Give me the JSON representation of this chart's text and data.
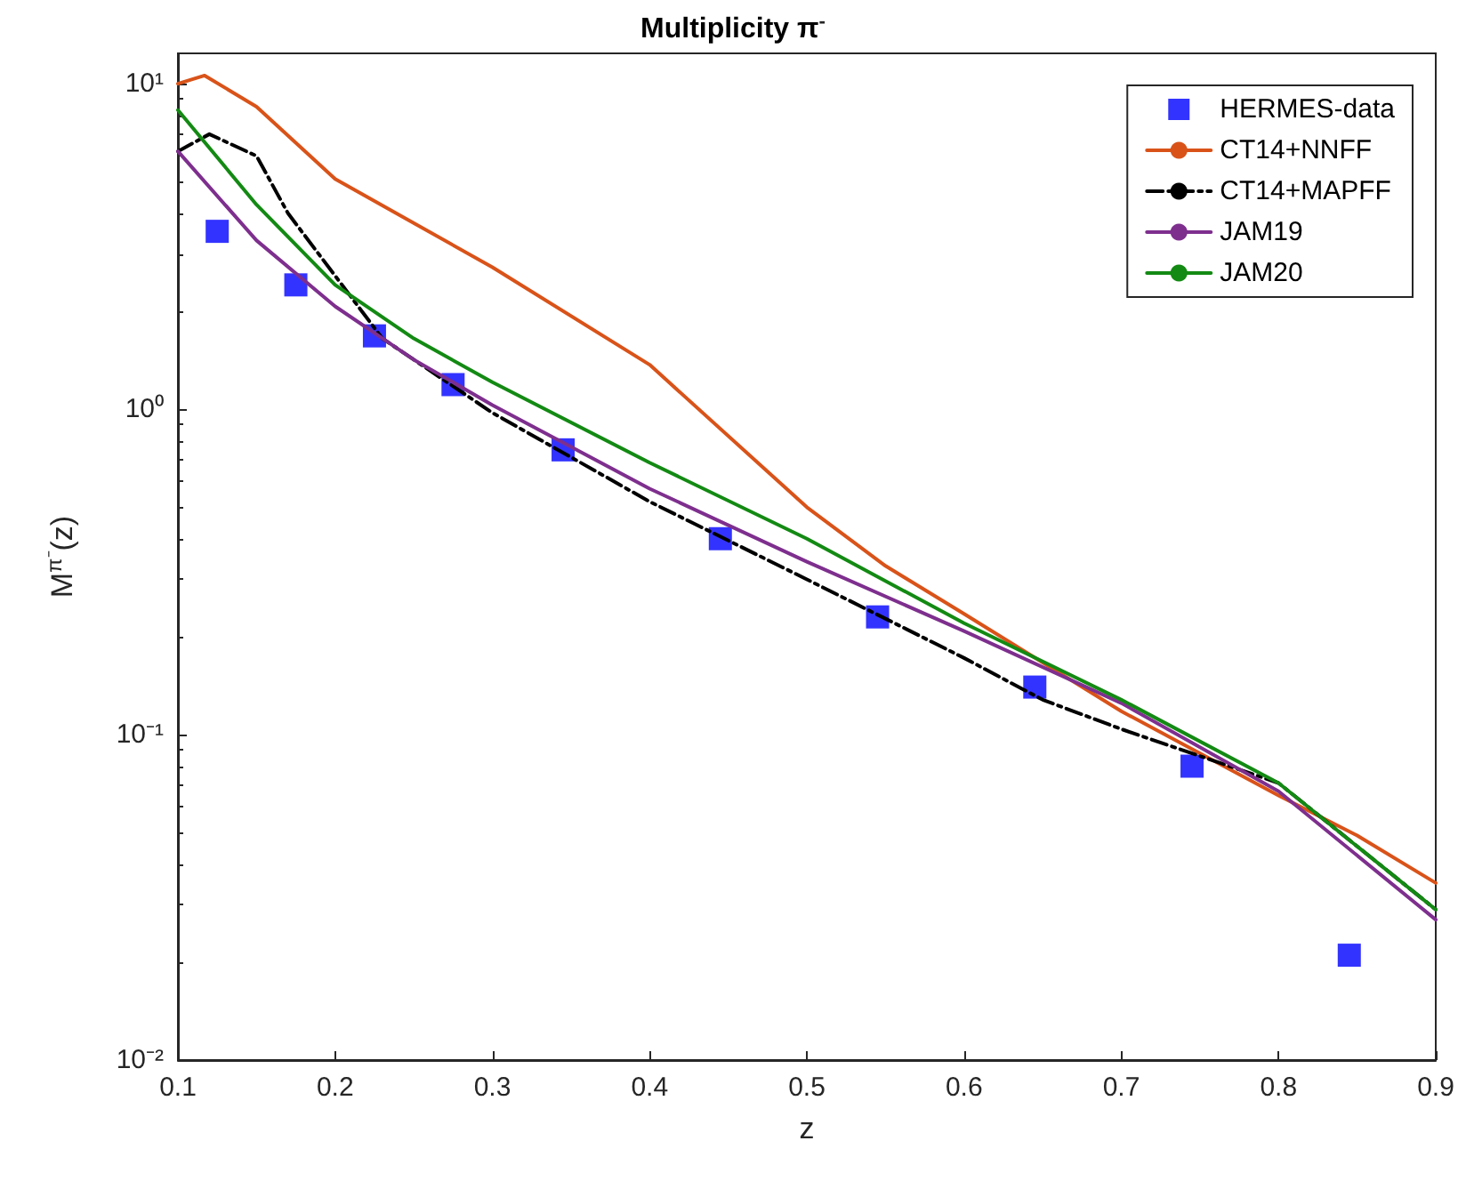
{
  "chart_data": {
    "type": "line",
    "title": "Multiplicity π$^{-}$",
    "xlabel": "z",
    "ylabel": "M$^{π⁻}$(z)",
    "log": "y",
    "xlim": [
      0.1,
      0.9
    ],
    "xticks": [
      0.1,
      0.2,
      0.3,
      0.4,
      0.5,
      0.6,
      0.7,
      0.8,
      0.9
    ],
    "ylim": [
      0.01,
      12.4
    ],
    "yticks": [
      {
        "value": 0.01,
        "label": "10⁻²"
      },
      {
        "value": 0.1,
        "label": "10⁻¹"
      },
      {
        "value": 1,
        "label": "10⁰"
      },
      {
        "value": 10,
        "label": "10¹"
      }
    ],
    "grid": false,
    "legend": "top right",
    "series": [
      {
        "name": "HERMES-data",
        "type": "scatter",
        "marker": "square",
        "color": "#0000ff",
        "x": [
          0.125,
          0.175,
          0.225,
          0.275,
          0.345,
          0.445,
          0.545,
          0.645,
          0.745,
          0.845
        ],
        "values": [
          3.52,
          2.41,
          1.68,
          1.19,
          0.75,
          0.4,
          0.23,
          0.14,
          0.08,
          0.021
        ]
      },
      {
        "name": "CT14+NNFF",
        "color": "#d95319",
        "line_style": "solid",
        "x": [
          0.1,
          0.117,
          0.15,
          0.2,
          0.3,
          0.4,
          0.5,
          0.55,
          0.6,
          0.7,
          0.8,
          0.85,
          0.9
        ],
        "values": [
          10.0,
          10.6,
          8.5,
          5.1,
          2.73,
          1.37,
          0.5,
          0.33,
          0.235,
          0.118,
          0.065,
          0.049,
          0.035
        ]
      },
      {
        "name": "CT14+MAPFF",
        "color": "#000000",
        "line_style": "dashed",
        "x": [
          0.1,
          0.12,
          0.15,
          0.17,
          0.2,
          0.23,
          0.3,
          0.4,
          0.5,
          0.6,
          0.65,
          0.7,
          0.8,
          0.9
        ],
        "values": [
          6.2,
          7.0,
          6.0,
          4.0,
          2.57,
          1.65,
          0.975,
          0.52,
          0.3,
          0.172,
          0.128,
          0.104,
          0.071,
          0.029
        ]
      },
      {
        "name": "JAM19",
        "color": "#7e2f8e",
        "line_style": "solid",
        "x": [
          0.1,
          0.15,
          0.2,
          0.25,
          0.3,
          0.4,
          0.5,
          0.6,
          0.7,
          0.8,
          0.9
        ],
        "values": [
          6.2,
          3.3,
          2.07,
          1.42,
          1.03,
          0.57,
          0.34,
          0.208,
          0.125,
          0.067,
          0.027
        ]
      },
      {
        "name": "JAM20",
        "color": "#138a13",
        "line_style": "solid",
        "x": [
          0.1,
          0.15,
          0.2,
          0.25,
          0.3,
          0.4,
          0.5,
          0.6,
          0.7,
          0.8,
          0.9
        ],
        "values": [
          8.3,
          4.25,
          2.41,
          1.65,
          1.21,
          0.685,
          0.4,
          0.22,
          0.128,
          0.071,
          0.029
        ]
      }
    ]
  }
}
